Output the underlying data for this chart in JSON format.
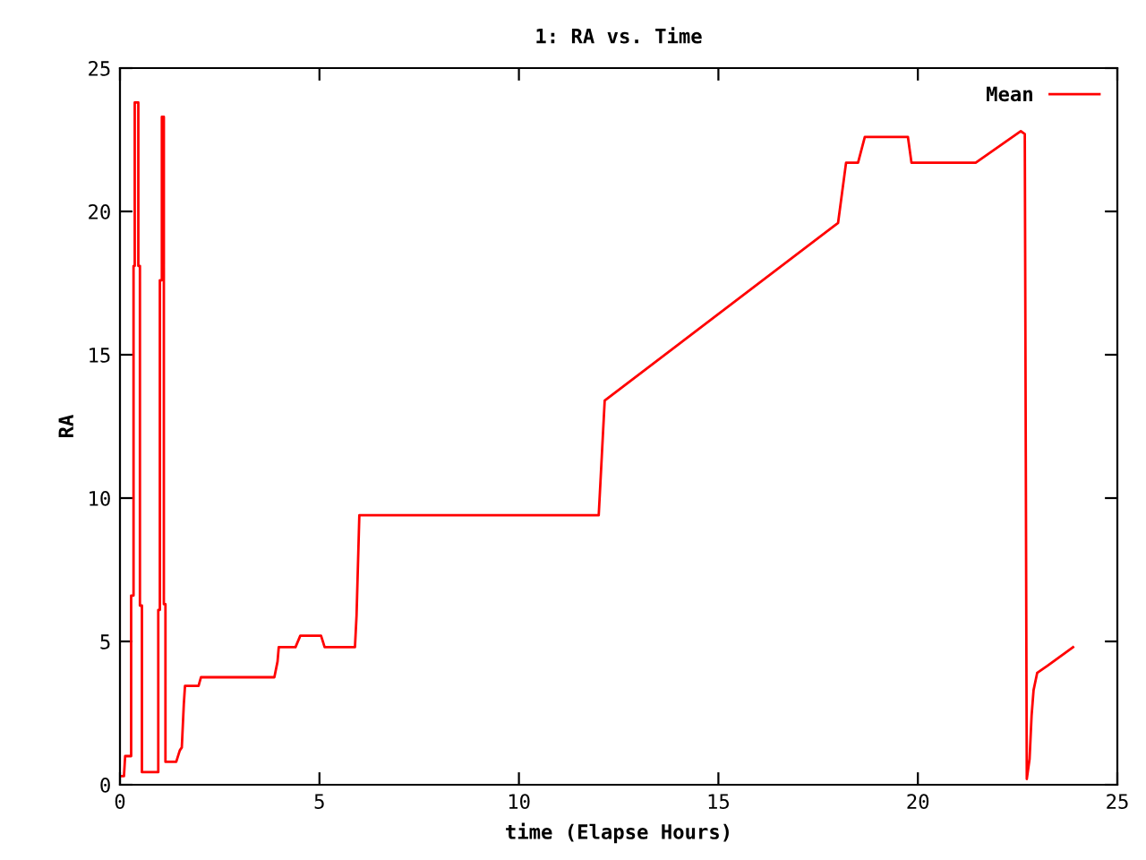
{
  "chart_data": {
    "type": "line",
    "title": "1: RA vs. Time",
    "xlabel": "time (Elapse Hours)",
    "ylabel": "RA",
    "xlim": [
      0,
      25
    ],
    "ylim": [
      0,
      25
    ],
    "xticks": [
      0,
      5,
      10,
      15,
      20,
      25
    ],
    "yticks": [
      0,
      5,
      10,
      15,
      20,
      25
    ],
    "legend": "top right",
    "grid": false,
    "series": [
      {
        "name": "Mean",
        "color": "#ff0000",
        "x": [
          0,
          0.1,
          0.13,
          0.28,
          0.28,
          0.34,
          0.34,
          0.37,
          0.37,
          0.46,
          0.46,
          0.5,
          0.5,
          0.55,
          0.55,
          0.96,
          0.96,
          1.0,
          1.0,
          1.05,
          1.05,
          1.1,
          1.1,
          1.14,
          1.14,
          1.41,
          1.5,
          1.55,
          1.6,
          1.63,
          1.97,
          2.03,
          3.87,
          3.95,
          3.98,
          4.4,
          4.52,
          5.04,
          5.13,
          5.89,
          5.93,
          6.0,
          12.0,
          12.15,
          18.0,
          18.2,
          18.5,
          18.67,
          19.75,
          19.84,
          21.45,
          22.58,
          22.68,
          22.73,
          22.8,
          22.85,
          22.9,
          22.99,
          23.25,
          23.89
        ],
        "values": [
          0.3,
          0.3,
          1.0,
          1.0,
          6.6,
          6.6,
          18.1,
          18.1,
          23.8,
          23.8,
          18.1,
          18.1,
          6.25,
          6.25,
          0.44,
          0.44,
          6.1,
          6.1,
          17.6,
          17.6,
          23.3,
          23.3,
          6.3,
          6.3,
          0.8,
          0.8,
          1.2,
          1.3,
          2.8,
          3.45,
          3.45,
          3.75,
          3.75,
          4.3,
          4.8,
          4.8,
          5.2,
          5.2,
          4.8,
          4.8,
          5.9,
          9.4,
          9.4,
          13.4,
          19.6,
          21.7,
          21.7,
          22.6,
          22.6,
          21.7,
          21.7,
          22.8,
          22.7,
          0.2,
          0.9,
          2.4,
          3.3,
          3.9,
          4.15,
          4.8
        ]
      }
    ]
  }
}
